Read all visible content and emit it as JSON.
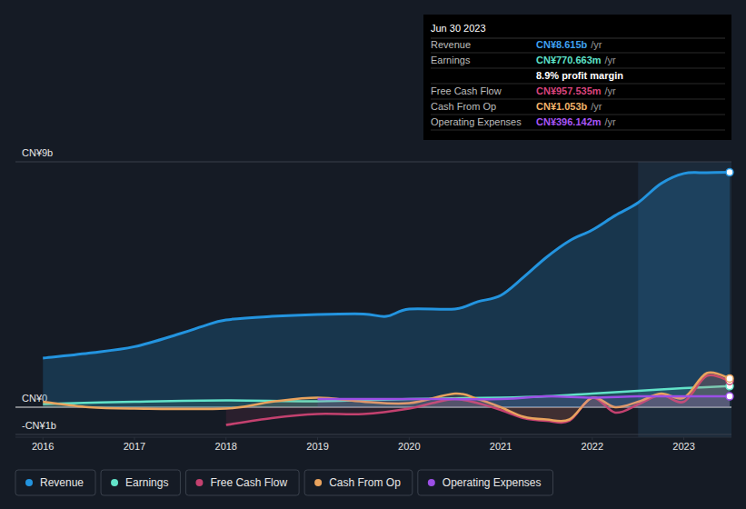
{
  "chart_data": {
    "type": "line",
    "xlim": [
      2015.7,
      2023.52
    ],
    "xticks": [
      2016,
      2017,
      2018,
      2019,
      2020,
      2021,
      2022,
      2023
    ],
    "ylim": [
      -1.1,
      9
    ],
    "yticks": [
      {
        "value": -1,
        "label": "-CN¥1b"
      },
      {
        "value": 0,
        "label": "CN¥0"
      },
      {
        "value": 9,
        "label": "CN¥9b"
      }
    ],
    "grid": true,
    "legend": "bottom",
    "series": [
      {
        "name": "Revenue",
        "color": "#2394df",
        "x": [
          2016,
          2016.5,
          2017,
          2017.5,
          2017.75,
          2018,
          2018.5,
          2019,
          2019.5,
          2019.75,
          2020,
          2020.5,
          2020.75,
          2021,
          2021.25,
          2021.5,
          2021.75,
          2022,
          2022.25,
          2022.5,
          2022.75,
          2023,
          2023.25,
          2023.5
        ],
        "values": [
          1.8,
          1.98,
          2.22,
          2.7,
          2.97,
          3.2,
          3.33,
          3.4,
          3.42,
          3.33,
          3.6,
          3.6,
          3.87,
          4.1,
          4.77,
          5.5,
          6.1,
          6.5,
          7.03,
          7.5,
          8.2,
          8.57,
          8.6,
          8.615
        ]
      },
      {
        "name": "Earnings",
        "color": "#62e3c9",
        "x": [
          2016,
          2017,
          2018,
          2019,
          2020,
          2021,
          2021.5,
          2022,
          2022.5,
          2023,
          2023.5
        ],
        "values": [
          0.12,
          0.2,
          0.25,
          0.22,
          0.3,
          0.35,
          0.4,
          0.5,
          0.6,
          0.7,
          0.771
        ]
      },
      {
        "name": "Free Cash Flow",
        "color": "#c4416f",
        "x": [
          2018,
          2018.5,
          2019,
          2019.5,
          2020,
          2020.25,
          2020.5,
          2020.75,
          2021,
          2021.25,
          2021.5,
          2021.75,
          2022,
          2022.25,
          2022.5,
          2022.75,
          2023,
          2023.25,
          2023.5
        ],
        "values": [
          -0.65,
          -0.4,
          -0.25,
          -0.25,
          -0.05,
          0.15,
          0.3,
          0.15,
          -0.1,
          -0.4,
          -0.5,
          -0.5,
          0.35,
          -0.2,
          0.1,
          0.45,
          0.2,
          1.15,
          0.958
        ]
      },
      {
        "name": "Cash From Op",
        "color": "#e9a35e",
        "x": [
          2016,
          2016.5,
          2017,
          2018,
          2018.5,
          2019,
          2019.5,
          2020,
          2020.5,
          2020.75,
          2021,
          2021.25,
          2021.5,
          2021.75,
          2022,
          2022.25,
          2022.5,
          2022.75,
          2023,
          2023.25,
          2023.5
        ],
        "values": [
          0.2,
          0.0,
          -0.05,
          -0.05,
          0.2,
          0.35,
          0.2,
          0.15,
          0.5,
          0.3,
          0.0,
          -0.35,
          -0.45,
          -0.45,
          0.35,
          0.0,
          0.2,
          0.5,
          0.35,
          1.25,
          1.053
        ]
      },
      {
        "name": "Operating Expenses",
        "color": "#9c4fe6",
        "x": [
          2019,
          2020,
          2021,
          2021.5,
          2022,
          2022.5,
          2023,
          2023.5
        ],
        "values": [
          0.3,
          0.3,
          0.3,
          0.4,
          0.35,
          0.4,
          0.4,
          0.396
        ]
      }
    ]
  },
  "tooltip": {
    "date": "Jun 30 2023",
    "rows": [
      {
        "label": "Revenue",
        "value": "CN¥8.615b",
        "unit": "/yr",
        "color": "#3fa0f0"
      },
      {
        "label": "Earnings",
        "value": "CN¥770.663m",
        "unit": "/yr",
        "color": "#5de0c8"
      },
      {
        "label": "Free Cash Flow",
        "value": "CN¥957.535m",
        "unit": "/yr",
        "color": "#d9447c"
      },
      {
        "label": "Cash From Op",
        "value": "CN¥1.053b",
        "unit": "/yr",
        "color": "#f2b36a"
      },
      {
        "label": "Operating Expenses",
        "value": "CN¥396.142m",
        "unit": "/yr",
        "color": "#a855f7"
      }
    ],
    "profit_margin": "8.9% profit margin"
  }
}
